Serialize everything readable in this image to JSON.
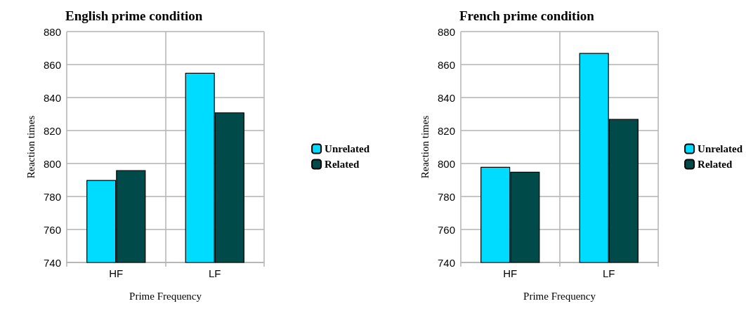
{
  "chart_data": [
    {
      "type": "bar",
      "title": "English prime condition",
      "xlabel": "Prime Frequency",
      "ylabel": "Reaction times",
      "categories": [
        "HF",
        "LF"
      ],
      "series": [
        {
          "name": "Unrelated",
          "color": "#00dcff",
          "values": [
            790,
            855
          ]
        },
        {
          "name": "Related",
          "color": "#004a4a",
          "values": [
            796,
            831
          ]
        }
      ],
      "ylim": [
        740,
        880
      ],
      "yticks": [
        740,
        760,
        780,
        800,
        820,
        840,
        860,
        880
      ],
      "grid": "y",
      "legend": "right"
    },
    {
      "type": "bar",
      "title": "French prime condition",
      "xlabel": "Prime Frequency",
      "ylabel": "Reaction times",
      "categories": [
        "HF",
        "LF"
      ],
      "series": [
        {
          "name": "Unrelated",
          "color": "#00dcff",
          "values": [
            798,
            867
          ]
        },
        {
          "name": "Related",
          "color": "#004a4a",
          "values": [
            795,
            827
          ]
        }
      ],
      "ylim": [
        740,
        880
      ],
      "yticks": [
        740,
        760,
        780,
        800,
        820,
        840,
        860,
        880
      ],
      "grid": "y",
      "legend": "right"
    }
  ]
}
